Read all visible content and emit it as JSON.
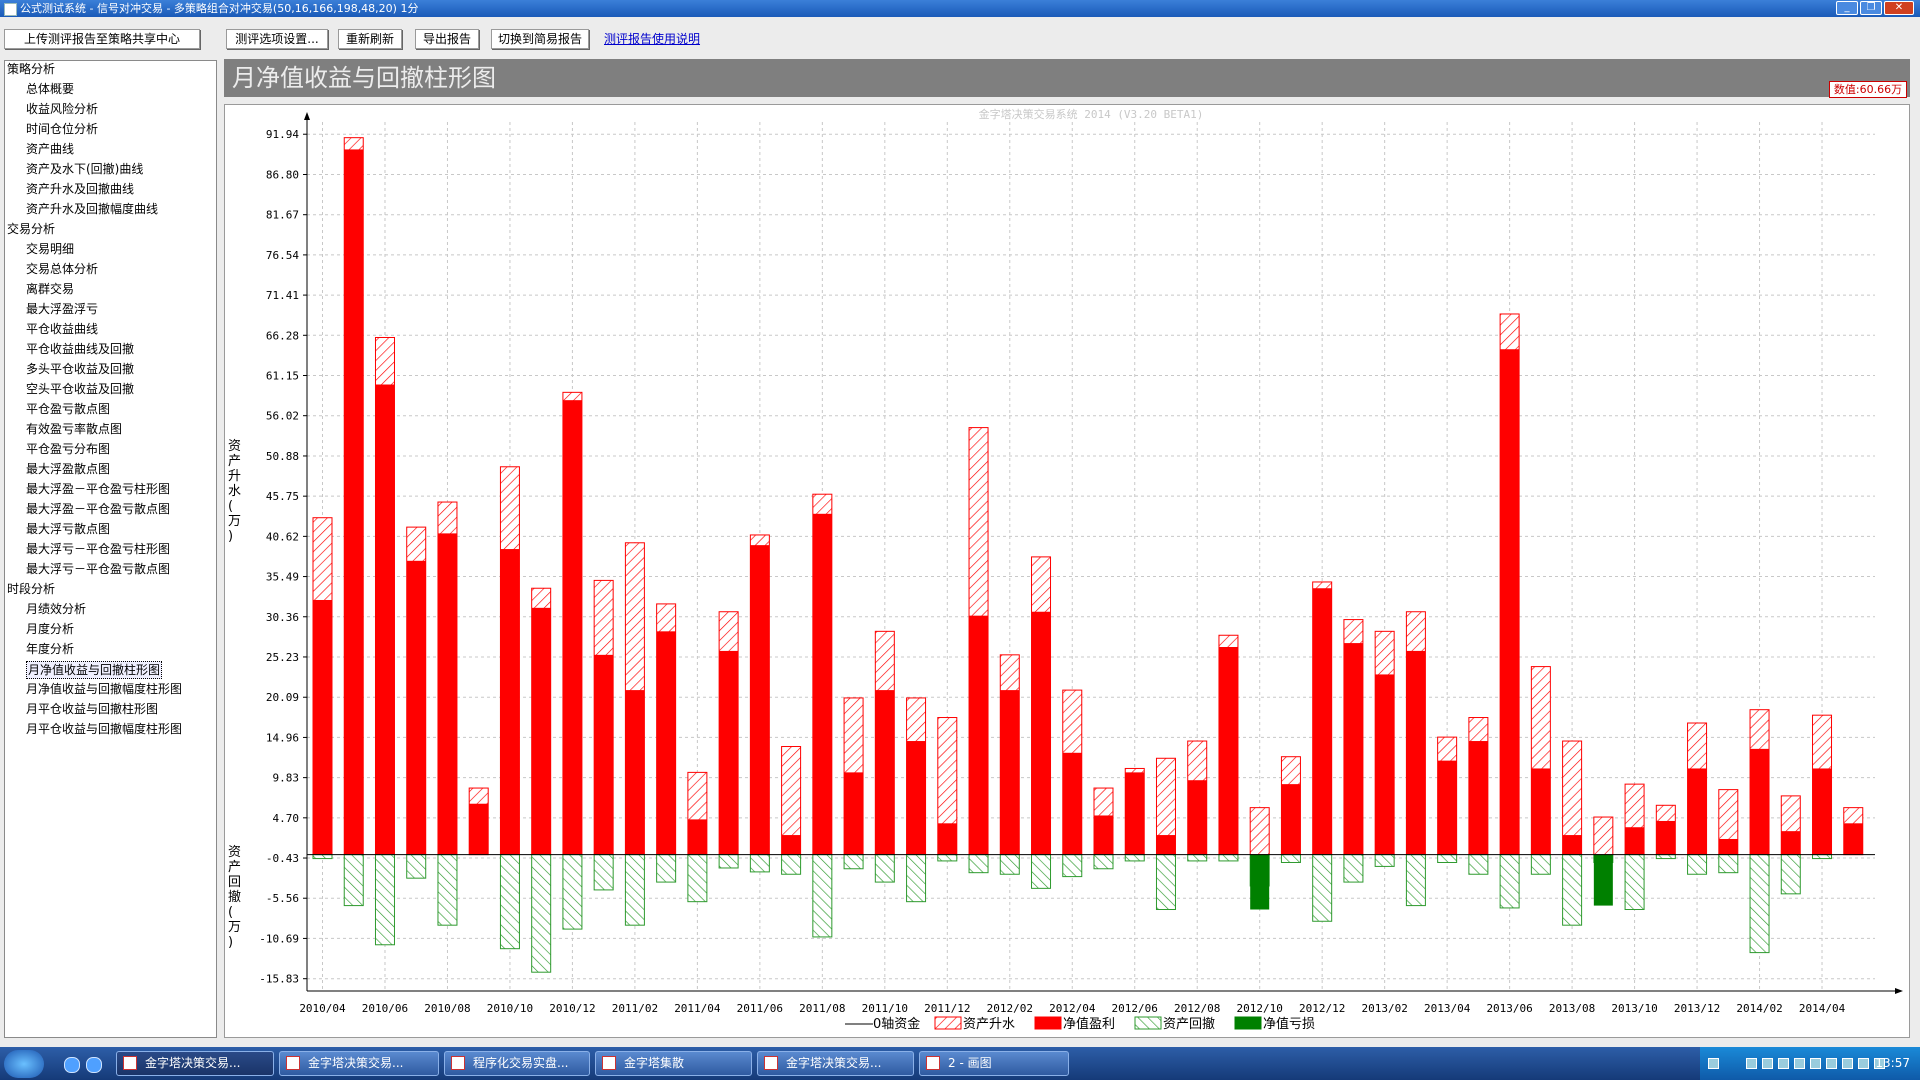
{
  "window": {
    "title": "公式测试系统 - 信号对冲交易 - 多策略组合对冲交易(50,16,166,198,48,20) 1分"
  },
  "toolbar": {
    "upload_label": "上传测评报告至策略共享中心",
    "settings_label": "测评选项设置...",
    "refresh_label": "重新刷新",
    "export_label": "导出报告",
    "switch_label": "切换到简易报告",
    "help_link": "测评报告使用说明"
  },
  "sidebar": {
    "groups": [
      {
        "label": "策略分析",
        "items": [
          "总体概要",
          "收益风险分析",
          "时间仓位分析",
          "资产曲线",
          "资产及水下(回撤)曲线",
          "资产升水及回撤曲线",
          "资产升水及回撤幅度曲线"
        ]
      },
      {
        "label": "交易分析",
        "items": [
          "交易明细",
          "交易总体分析",
          "离群交易",
          "最大浮盈浮亏",
          "平仓收益曲线",
          "平仓收益曲线及回撤",
          "多头平仓收益及回撤",
          "空头平仓收益及回撤",
          "平仓盈亏散点图",
          "有效盈亏率散点图",
          "平仓盈亏分布图",
          "最大浮盈散点图",
          "最大浮盈－平仓盈亏柱形图",
          "最大浮盈－平仓盈亏散点图",
          "最大浮亏散点图",
          "最大浮亏－平仓盈亏柱形图",
          "最大浮亏－平仓盈亏散点图"
        ]
      },
      {
        "label": "时段分析",
        "items": [
          "月绩效分析",
          "月度分析",
          "年度分析",
          "月净值收益与回撤柱形图",
          "月净值收益与回撤幅度柱形图",
          "月平仓收益与回撤柱形图",
          "月平仓收益与回撤幅度柱形图"
        ]
      }
    ],
    "selected": "月净值收益与回撤柱形图"
  },
  "panel": {
    "title": "月净值收益与回撤柱形图",
    "value_readout": "数值:60.66万"
  },
  "chart_data": {
    "type": "bar",
    "watermark": "金字塔决策交易系统 2014 (V3.20 BETA1)",
    "ylabel_top": "资产升水(万)",
    "ylabel_bottom": "资产回撤(万)",
    "yticks": [
      "91.94",
      "86.80",
      "81.67",
      "76.54",
      "71.41",
      "66.28",
      "61.15",
      "56.02",
      "50.88",
      "45.75",
      "40.62",
      "35.49",
      "30.36",
      "25.23",
      "20.09",
      "14.96",
      "9.83",
      "4.70",
      "-0.43",
      "-5.56",
      "-10.69",
      "-15.83"
    ],
    "ylim": [
      -17.4,
      93.5
    ],
    "x_tick_labels": [
      "2010/04",
      "2010/06",
      "2010/08",
      "2010/10",
      "2010/12",
      "2011/02",
      "2011/04",
      "2011/06",
      "2011/08",
      "2011/10",
      "2011/12",
      "2012/02",
      "2012/04",
      "2012/06",
      "2012/08",
      "2012/10",
      "2012/12",
      "2013/02",
      "2013/04",
      "2013/06",
      "2013/08",
      "2013/10",
      "2013/12",
      "2014/02",
      "2014/04"
    ],
    "categories": [
      "2010/04",
      "2010/05",
      "2010/06",
      "2010/07",
      "2010/08",
      "2010/09",
      "2010/10",
      "2010/11",
      "2010/12",
      "2011/01",
      "2011/02",
      "2011/03",
      "2011/04",
      "2011/05",
      "2011/06",
      "2011/07",
      "2011/08",
      "2011/09",
      "2011/10",
      "2011/11",
      "2011/12",
      "2012/01",
      "2012/02",
      "2012/03",
      "2012/04",
      "2012/05",
      "2012/06",
      "2012/07",
      "2012/08",
      "2012/09",
      "2012/10",
      "2012/11",
      "2012/12",
      "2013/01",
      "2013/02",
      "2013/03",
      "2013/04",
      "2013/05",
      "2013/06",
      "2013/07",
      "2013/08",
      "2013/09",
      "2013/10",
      "2013/11",
      "2013/12",
      "2014/01",
      "2014/02",
      "2014/03",
      "2014/04",
      "2014/05"
    ],
    "series": [
      {
        "name": "资产升水",
        "values": [
          43.0,
          91.5,
          66.0,
          41.8,
          45.0,
          8.5,
          49.5,
          34.0,
          59.0,
          35.0,
          39.8,
          32.0,
          10.5,
          31.0,
          40.8,
          13.8,
          46.0,
          20.0,
          28.5,
          20.0,
          17.5,
          54.5,
          25.5,
          38.0,
          21.0,
          8.5,
          11.0,
          12.3,
          14.5,
          28.0,
          6.0,
          12.5,
          34.8,
          30.0,
          28.5,
          31.0,
          15.0,
          17.5,
          69.0,
          24.0,
          14.5,
          4.8,
          9.0,
          6.3,
          16.8,
          8.3,
          18.5,
          7.5,
          17.8,
          6.0
        ]
      },
      {
        "name": "净值盈利",
        "values": [
          32.5,
          90.0,
          60.0,
          37.5,
          41.0,
          6.5,
          39.0,
          31.5,
          58.0,
          25.5,
          21.0,
          28.5,
          4.5,
          26.0,
          39.5,
          2.5,
          43.5,
          10.5,
          21.0,
          14.5,
          4.0,
          30.5,
          21.0,
          31.0,
          13.0,
          5.0,
          10.5,
          2.5,
          9.5,
          26.5,
          0,
          9.0,
          34.0,
          27.0,
          23.0,
          26.0,
          12.0,
          14.5,
          64.5,
          11.0,
          2.5,
          0,
          3.5,
          4.3,
          11.0,
          2.0,
          13.5,
          3.0,
          11.0,
          4.0
        ]
      },
      {
        "name": "资产回撤",
        "values": [
          -0.5,
          -6.5,
          -11.5,
          -3.0,
          -9.0,
          0,
          -12.0,
          -15.0,
          -9.5,
          -4.5,
          -9.0,
          -3.5,
          -6.0,
          -1.7,
          -2.2,
          -2.5,
          -10.5,
          -1.8,
          -3.5,
          -6.0,
          -0.8,
          -2.3,
          -2.5,
          -4.3,
          -2.8,
          -1.8,
          -0.8,
          -7.0,
          -0.8,
          -0.8,
          -4.0,
          -1.0,
          -8.5,
          -3.5,
          -1.5,
          -6.5,
          -1.0,
          -2.5,
          -6.8,
          -2.5,
          -9.0,
          -1.0,
          -7.0,
          -0.5,
          -2.5,
          -2.3,
          -12.5,
          -5.0,
          -0.5,
          0
        ]
      },
      {
        "name": "净值亏损",
        "values": [
          0,
          0,
          0,
          0,
          0,
          0,
          0,
          0,
          0,
          0,
          0,
          0,
          0,
          0,
          0,
          0,
          0,
          0,
          0,
          0,
          0,
          0,
          0,
          0,
          0,
          0,
          0,
          0,
          0,
          0,
          -7.0,
          0,
          0,
          0,
          0,
          0,
          0,
          0,
          0,
          0,
          0,
          -6.5,
          0,
          0,
          0,
          0,
          0,
          0,
          0,
          0
        ]
      }
    ],
    "legend": [
      "0轴资金",
      "资产升水",
      "净值盈利",
      "资产回撤",
      "净值亏损"
    ],
    "colors": {
      "gain": "#ff0000",
      "drawdown_hatch": "#2e9a2e",
      "loss": "#008000",
      "rise_hatch": "#ff0000",
      "grid": "#c8c8c8"
    }
  },
  "taskbar": {
    "items": [
      "金字塔决策交易...",
      "金字塔决策交易...",
      "程序化交易实盘...",
      "金字塔集散",
      "金字塔决策交易...",
      "2 - 画图"
    ],
    "clock": "13:57"
  }
}
